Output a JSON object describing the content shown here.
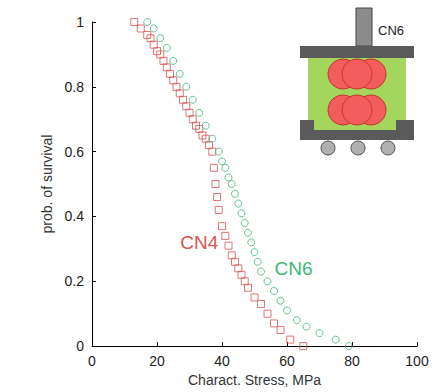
{
  "chart_data": {
    "type": "scatter",
    "x_label": "Charact. Stress, MPa",
    "y_label": "prob. of survival",
    "xlim": [
      0,
      100
    ],
    "xticks": [
      0,
      20,
      40,
      60,
      80,
      100
    ],
    "ylim": [
      0,
      1
    ],
    "yticks": [
      0,
      0.2,
      0.4,
      0.6,
      0.8,
      1
    ],
    "grid": false,
    "series": [
      {
        "name": "CN4",
        "color": "#d9534f",
        "marker": "square",
        "x": [
          13,
          15,
          17,
          18,
          19,
          20,
          21,
          22,
          23,
          24,
          25,
          26,
          27,
          28,
          29,
          30,
          31,
          32,
          33,
          34,
          35,
          36,
          37,
          37.5,
          38,
          38.5,
          39,
          40,
          41,
          42,
          43,
          44,
          45,
          46,
          47,
          48,
          50,
          52,
          54,
          56,
          58,
          61,
          65
        ],
        "values": [
          1,
          0.98,
          0.96,
          0.95,
          0.93,
          0.91,
          0.9,
          0.88,
          0.86,
          0.84,
          0.82,
          0.8,
          0.78,
          0.76,
          0.74,
          0.72,
          0.7,
          0.68,
          0.67,
          0.65,
          0.64,
          0.62,
          0.6,
          0.55,
          0.5,
          0.46,
          0.42,
          0.37,
          0.34,
          0.31,
          0.28,
          0.26,
          0.24,
          0.22,
          0.2,
          0.18,
          0.15,
          0.13,
          0.1,
          0.07,
          0.05,
          0.02,
          0
        ]
      },
      {
        "name": "CN6",
        "color": "#3cb878",
        "marker": "circle",
        "x": [
          17,
          19,
          21,
          23,
          25,
          27,
          29,
          31,
          33,
          35,
          37,
          39,
          40,
          41,
          42,
          43,
          44,
          45,
          46,
          47,
          48,
          49,
          50,
          51,
          52,
          54,
          56,
          58,
          60,
          63,
          66,
          70,
          75,
          79
        ],
        "values": [
          1,
          0.98,
          0.95,
          0.92,
          0.88,
          0.84,
          0.8,
          0.76,
          0.72,
          0.68,
          0.64,
          0.6,
          0.57,
          0.55,
          0.52,
          0.5,
          0.47,
          0.44,
          0.41,
          0.38,
          0.35,
          0.32,
          0.29,
          0.26,
          0.23,
          0.2,
          0.17,
          0.14,
          0.11,
          0.08,
          0.06,
          0.04,
          0.02,
          0
        ]
      }
    ],
    "annotations": [
      {
        "text": "CN4",
        "x": 33,
        "y": 0.32,
        "color": "#d9534f"
      },
      {
        "text": "CN6",
        "x": 62,
        "y": 0.24,
        "color": "#3cb878"
      }
    ],
    "inset": {
      "label": "CN6"
    }
  }
}
